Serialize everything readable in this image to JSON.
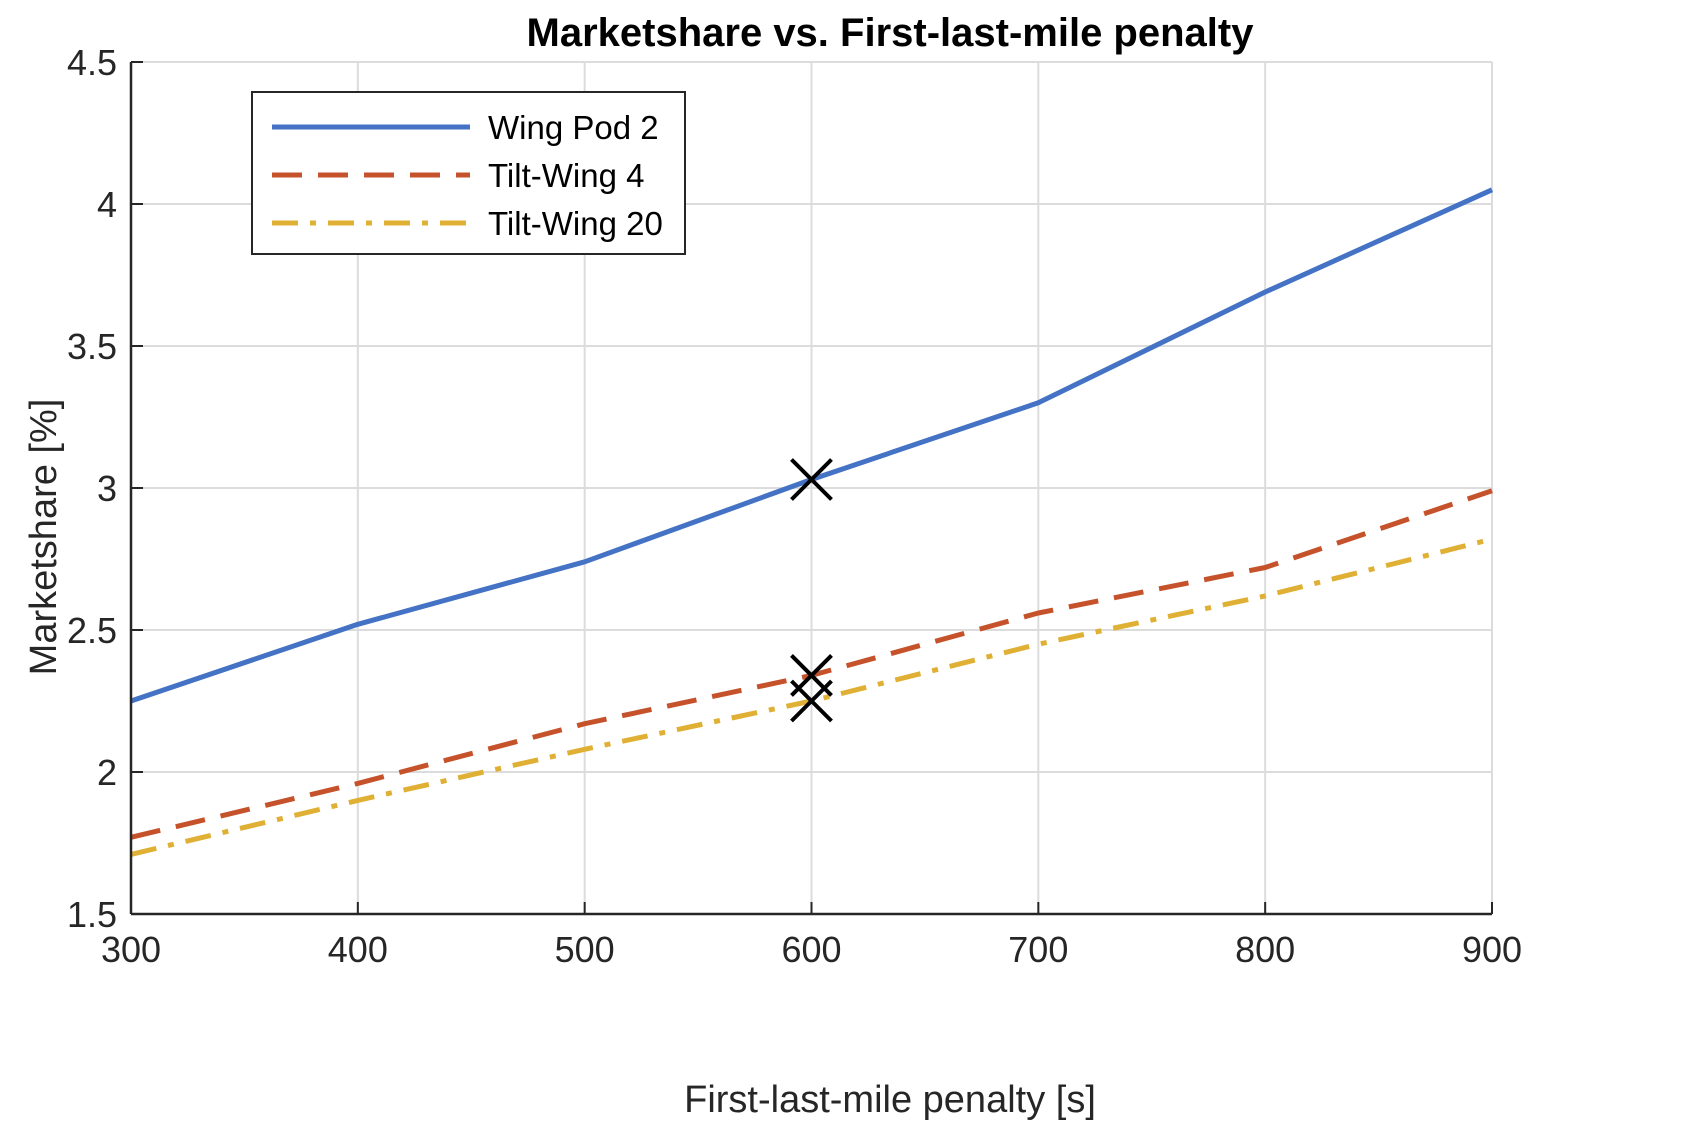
{
  "chart_data": {
    "type": "line",
    "title": "Marketshare vs. First-last-mile penalty",
    "xlabel": "First-last-mile penalty [s]",
    "ylabel": "Marketshare [%]",
    "xlim": [
      300,
      900
    ],
    "ylim": [
      1.5,
      4.5
    ],
    "xticks": [
      "300",
      "400",
      "500",
      "600",
      "700",
      "800",
      "900"
    ],
    "yticks": [
      "1.5",
      "2",
      "2.5",
      "3",
      "3.5",
      "4",
      "4.5"
    ],
    "grid": true,
    "legend_position": "top-left",
    "x": [
      300,
      400,
      500,
      600,
      700,
      800,
      900
    ],
    "series": [
      {
        "name": "Wing Pod 2",
        "values": [
          2.25,
          2.52,
          2.74,
          3.03,
          3.3,
          3.69,
          4.05
        ],
        "color": "#4472C4",
        "style": "solid"
      },
      {
        "name": "Tilt-Wing 4",
        "values": [
          1.77,
          1.96,
          2.17,
          2.34,
          2.56,
          2.72,
          2.99
        ],
        "color": "#C5522B",
        "style": "dashed"
      },
      {
        "name": "Tilt-Wing 20",
        "values": [
          1.71,
          1.9,
          2.08,
          2.25,
          2.45,
          2.62,
          2.82
        ],
        "color": "#E0B035",
        "style": "dashdot"
      }
    ],
    "markers": [
      {
        "x": 600,
        "y": 3.03,
        "symbol": "x",
        "color": "#000000"
      },
      {
        "x": 600,
        "y": 2.34,
        "symbol": "x",
        "color": "#000000"
      },
      {
        "x": 600,
        "y": 2.25,
        "symbol": "x",
        "color": "#000000"
      }
    ]
  }
}
